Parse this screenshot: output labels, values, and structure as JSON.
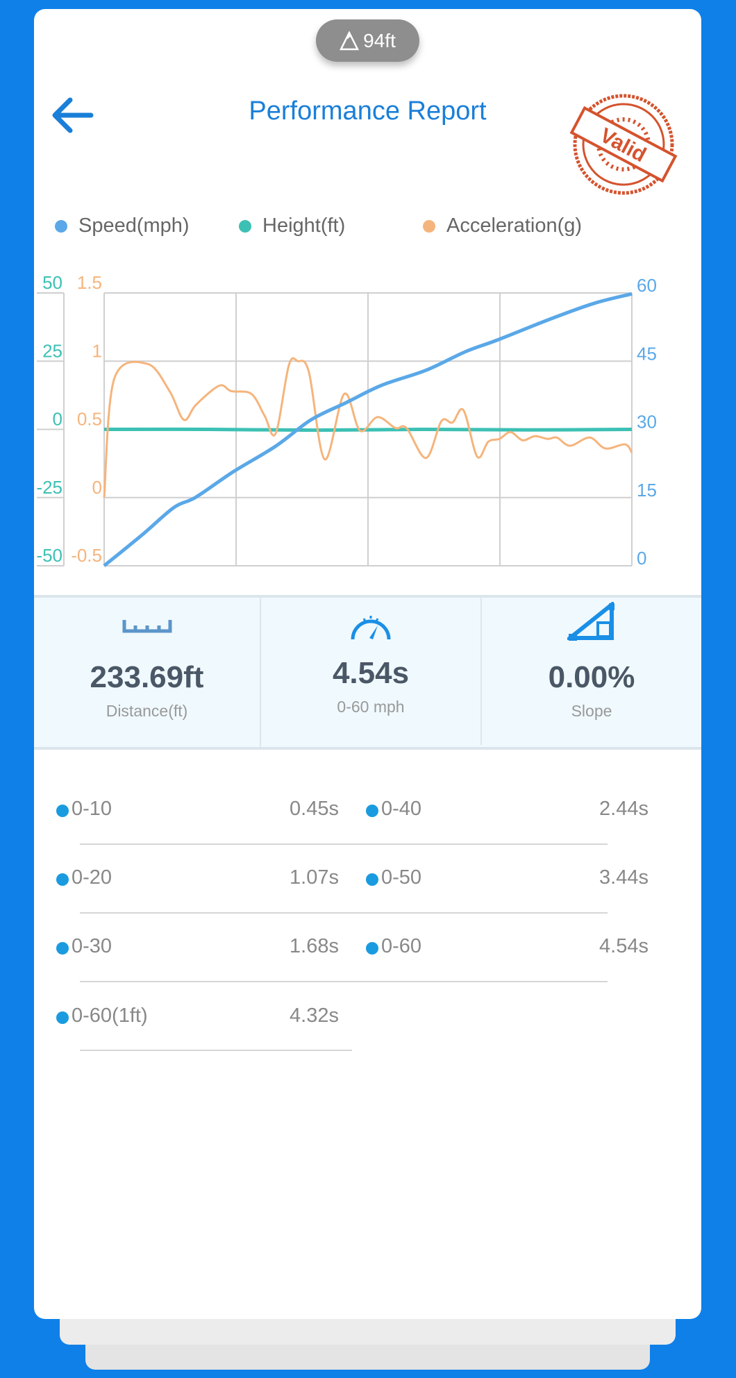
{
  "header": {
    "altitude": "94ft",
    "title": "Performance Report",
    "stamp_text": "Valid"
  },
  "colors": {
    "background": "#0f80e8",
    "accent": "#1a7fd8",
    "speed": "#5aa8e8",
    "height": "#3cc0b4",
    "acceleration": "#f5b47c",
    "stamp": "#d4532e"
  },
  "chart_data": {
    "type": "line",
    "legend": [
      "Speed(mph)",
      "Height(ft)",
      "Acceleration(g)"
    ],
    "axes": {
      "height": {
        "ticks": [
          "50",
          "25",
          "0",
          "-25",
          "-50"
        ],
        "range": [
          -50,
          50
        ]
      },
      "acceleration": {
        "ticks": [
          "1.5",
          "1",
          "0.5",
          "0",
          "-0.5"
        ],
        "range": [
          -0.5,
          1.5
        ]
      },
      "speed": {
        "ticks": [
          "60",
          "45",
          "30",
          "15",
          "0"
        ],
        "range": [
          0,
          60
        ]
      }
    },
    "x_range": [
      0,
      100
    ],
    "grid": true,
    "series": [
      {
        "name": "Speed(mph)",
        "x": [
          0,
          7.4,
          13.2,
          17.4,
          24.5,
          32.5,
          39.2,
          45.9,
          52.6,
          61,
          68.5,
          74.4,
          84.4,
          92.8,
          100
        ],
        "y": [
          0,
          7,
          12.8,
          15.1,
          20.7,
          26.3,
          32.1,
          35.9,
          39.7,
          43,
          47.1,
          49.6,
          54.2,
          57.7,
          59.8
        ]
      },
      {
        "name": "Height(ft)",
        "x": [
          0,
          20,
          40,
          60,
          80,
          100
        ],
        "y": [
          0,
          0,
          -0.3,
          0,
          -0.2,
          0
        ]
      },
      {
        "name": "Acceleration(g)",
        "x": [
          0,
          1.9,
          8.2,
          12.4,
          15.1,
          17.4,
          21.8,
          24.1,
          27.9,
          30.4,
          32.5,
          35,
          36.7,
          38.8,
          41.8,
          45.5,
          48.5,
          51.8,
          55.2,
          57.3,
          61,
          63.9,
          66,
          68.1,
          70.7,
          72.8,
          74.9,
          77,
          79.3,
          81.6,
          84.1,
          85.8,
          88.3,
          92,
          95,
          98.7,
          100
        ],
        "y": [
          0,
          0.87,
          0.98,
          0.78,
          0.57,
          0.68,
          0.82,
          0.78,
          0.76,
          0.6,
          0.47,
          0.97,
          1.0,
          0.92,
          0.28,
          0.76,
          0.49,
          0.59,
          0.51,
          0.51,
          0.29,
          0.56,
          0.55,
          0.64,
          0.3,
          0.41,
          0.43,
          0.48,
          0.42,
          0.45,
          0.43,
          0.44,
          0.38,
          0.44,
          0.36,
          0.39,
          0.33
        ]
      }
    ]
  },
  "stats": [
    {
      "value": "233.69ft",
      "label": "Distance(ft)",
      "icon": "ruler-icon"
    },
    {
      "value": "4.54s",
      "label": "0-60 mph",
      "icon": "speedometer-icon"
    },
    {
      "value": "0.00%",
      "label": "Slope",
      "icon": "slope-icon"
    }
  ],
  "splits": [
    {
      "label": "0-10",
      "value": "0.45s"
    },
    {
      "label": "0-40",
      "value": "2.44s"
    },
    {
      "label": "0-20",
      "value": "1.07s"
    },
    {
      "label": "0-50",
      "value": "3.44s"
    },
    {
      "label": "0-30",
      "value": "1.68s"
    },
    {
      "label": "0-60",
      "value": "4.54s"
    },
    {
      "label": "0-60(1ft)",
      "value": "4.32s"
    }
  ]
}
